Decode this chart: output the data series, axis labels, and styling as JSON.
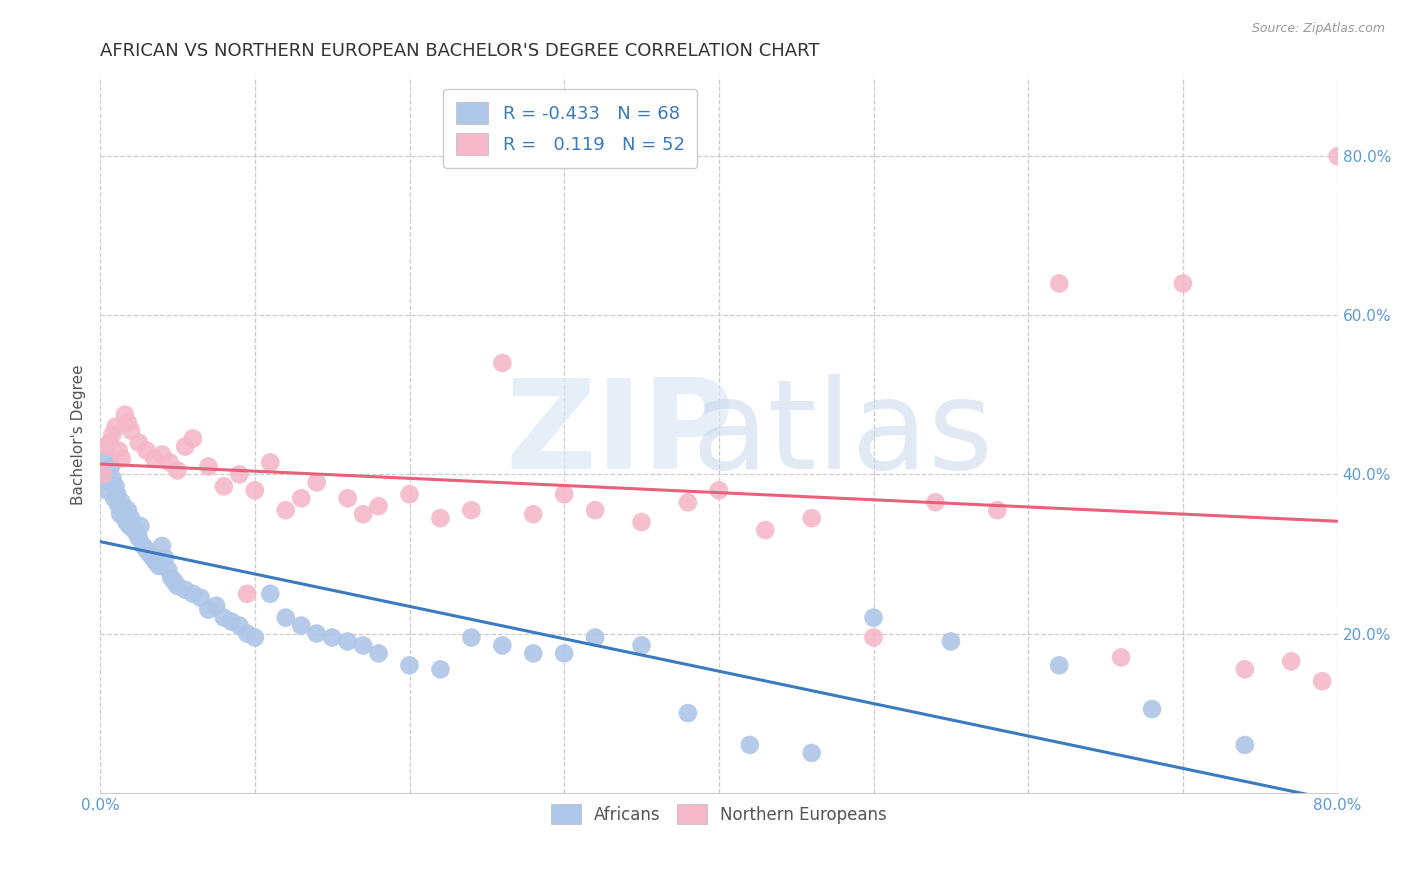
{
  "title": "AFRICAN VS NORTHERN EUROPEAN BACHELOR'S DEGREE CORRELATION CHART",
  "source": "Source: ZipAtlas.com",
  "ylabel": "Bachelor's Degree",
  "xlim": [
    0.0,
    0.8
  ],
  "ylim": [
    0.0,
    0.9
  ],
  "xtick_vals": [
    0.0,
    0.1,
    0.2,
    0.3,
    0.4,
    0.5,
    0.6,
    0.7,
    0.8
  ],
  "xtick_labels_show": [
    "0.0%",
    "",
    "",
    "",
    "",
    "",
    "",
    "",
    "80.0%"
  ],
  "ytick_vals": [
    0.2,
    0.4,
    0.6,
    0.8
  ],
  "ytick_labels": [
    "20.0%",
    "40.0%",
    "60.0%",
    "80.0%"
  ],
  "blue_color": "#aec6e8",
  "pink_color": "#f4b8c8",
  "blue_line_color": "#3a7abf",
  "pink_line_color": "#e8607a",
  "legend_text_color": "#3a7abf",
  "africans_R": -0.433,
  "africans_N": 68,
  "northerneuropeans_R": 0.119,
  "northerneuropeans_N": 52,
  "africans_x": [
    0.002,
    0.004,
    0.005,
    0.006,
    0.007,
    0.008,
    0.009,
    0.01,
    0.011,
    0.012,
    0.013,
    0.014,
    0.015,
    0.016,
    0.017,
    0.018,
    0.019,
    0.02,
    0.022,
    0.024,
    0.025,
    0.026,
    0.028,
    0.03,
    0.032,
    0.034,
    0.036,
    0.038,
    0.04,
    0.042,
    0.044,
    0.046,
    0.048,
    0.05,
    0.055,
    0.06,
    0.065,
    0.07,
    0.075,
    0.08,
    0.085,
    0.09,
    0.095,
    0.1,
    0.11,
    0.12,
    0.13,
    0.14,
    0.15,
    0.16,
    0.17,
    0.18,
    0.2,
    0.22,
    0.24,
    0.26,
    0.28,
    0.3,
    0.32,
    0.35,
    0.38,
    0.42,
    0.46,
    0.5,
    0.55,
    0.62,
    0.68,
    0.74
  ],
  "africans_y": [
    0.4,
    0.38,
    0.42,
    0.39,
    0.41,
    0.395,
    0.37,
    0.385,
    0.375,
    0.36,
    0.35,
    0.365,
    0.355,
    0.345,
    0.34,
    0.355,
    0.335,
    0.345,
    0.33,
    0.325,
    0.32,
    0.335,
    0.31,
    0.305,
    0.3,
    0.295,
    0.29,
    0.285,
    0.31,
    0.295,
    0.28,
    0.27,
    0.265,
    0.26,
    0.255,
    0.25,
    0.245,
    0.23,
    0.235,
    0.22,
    0.215,
    0.21,
    0.2,
    0.195,
    0.25,
    0.22,
    0.21,
    0.2,
    0.195,
    0.19,
    0.185,
    0.175,
    0.16,
    0.155,
    0.195,
    0.185,
    0.175,
    0.175,
    0.195,
    0.185,
    0.1,
    0.06,
    0.05,
    0.22,
    0.19,
    0.16,
    0.105,
    0.06
  ],
  "northerneuropeans_x": [
    0.002,
    0.004,
    0.006,
    0.008,
    0.01,
    0.012,
    0.014,
    0.016,
    0.018,
    0.02,
    0.025,
    0.03,
    0.035,
    0.04,
    0.045,
    0.05,
    0.055,
    0.06,
    0.07,
    0.08,
    0.09,
    0.1,
    0.11,
    0.12,
    0.14,
    0.16,
    0.18,
    0.2,
    0.22,
    0.24,
    0.26,
    0.28,
    0.3,
    0.32,
    0.35,
    0.38,
    0.4,
    0.43,
    0.46,
    0.5,
    0.54,
    0.58,
    0.62,
    0.66,
    0.7,
    0.74,
    0.77,
    0.79,
    0.8,
    0.095,
    0.13,
    0.17
  ],
  "northerneuropeans_y": [
    0.4,
    0.435,
    0.44,
    0.45,
    0.46,
    0.43,
    0.42,
    0.475,
    0.465,
    0.455,
    0.44,
    0.43,
    0.42,
    0.425,
    0.415,
    0.405,
    0.435,
    0.445,
    0.41,
    0.385,
    0.4,
    0.38,
    0.415,
    0.355,
    0.39,
    0.37,
    0.36,
    0.375,
    0.345,
    0.355,
    0.54,
    0.35,
    0.375,
    0.355,
    0.34,
    0.365,
    0.38,
    0.33,
    0.345,
    0.195,
    0.365,
    0.355,
    0.64,
    0.17,
    0.64,
    0.155,
    0.165,
    0.14,
    0.8,
    0.25,
    0.37,
    0.35
  ],
  "title_fontsize": 13,
  "axis_label_fontsize": 11,
  "tick_fontsize": 11,
  "legend_fontsize": 13
}
